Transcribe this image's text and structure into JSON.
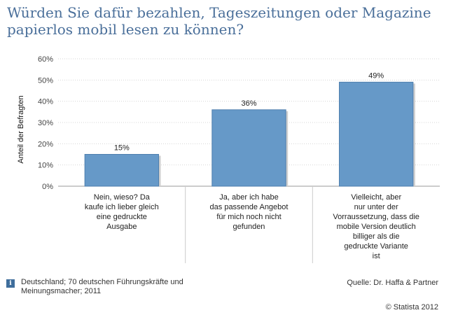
{
  "title": "Würden Sie dafür bezahlen, Tageszeitungen oder Magazine papierlos mobil lesen zu können?",
  "chart_data": {
    "type": "bar",
    "categories": [
      [
        "Nein, wieso? Da",
        "kaufe ich lieber gleich",
        "eine gedruckte",
        "Ausgabe"
      ],
      [
        "Ja, aber ich habe",
        "das passende Angebot",
        "für mich noch nicht",
        "gefunden"
      ],
      [
        "Vielleicht, aber",
        "nur unter der",
        "Vorraussetzung, dass die",
        "mobile Version deutlich",
        "billiger als die",
        "gedruckte Variante",
        "ist"
      ]
    ],
    "values": [
      15,
      36,
      49
    ],
    "value_labels": [
      "15%",
      "36%",
      "49%"
    ],
    "ylabel": "Anteil der Befragten",
    "ylim": [
      0,
      60
    ],
    "yticks": [
      "0%",
      "10%",
      "20%",
      "30%",
      "40%",
      "50%",
      "60%"
    ],
    "grid": true,
    "bar_color": "#6699c8",
    "bar_border": "#4f7fae"
  },
  "footer": {
    "note": "Deutschland; 70 deutschen Führungskräfte und Meinungsmacher; 2011",
    "info_icon": "i",
    "source": "Quelle: Dr. Haffa & Partner",
    "copyright": "© Statista 2012"
  }
}
